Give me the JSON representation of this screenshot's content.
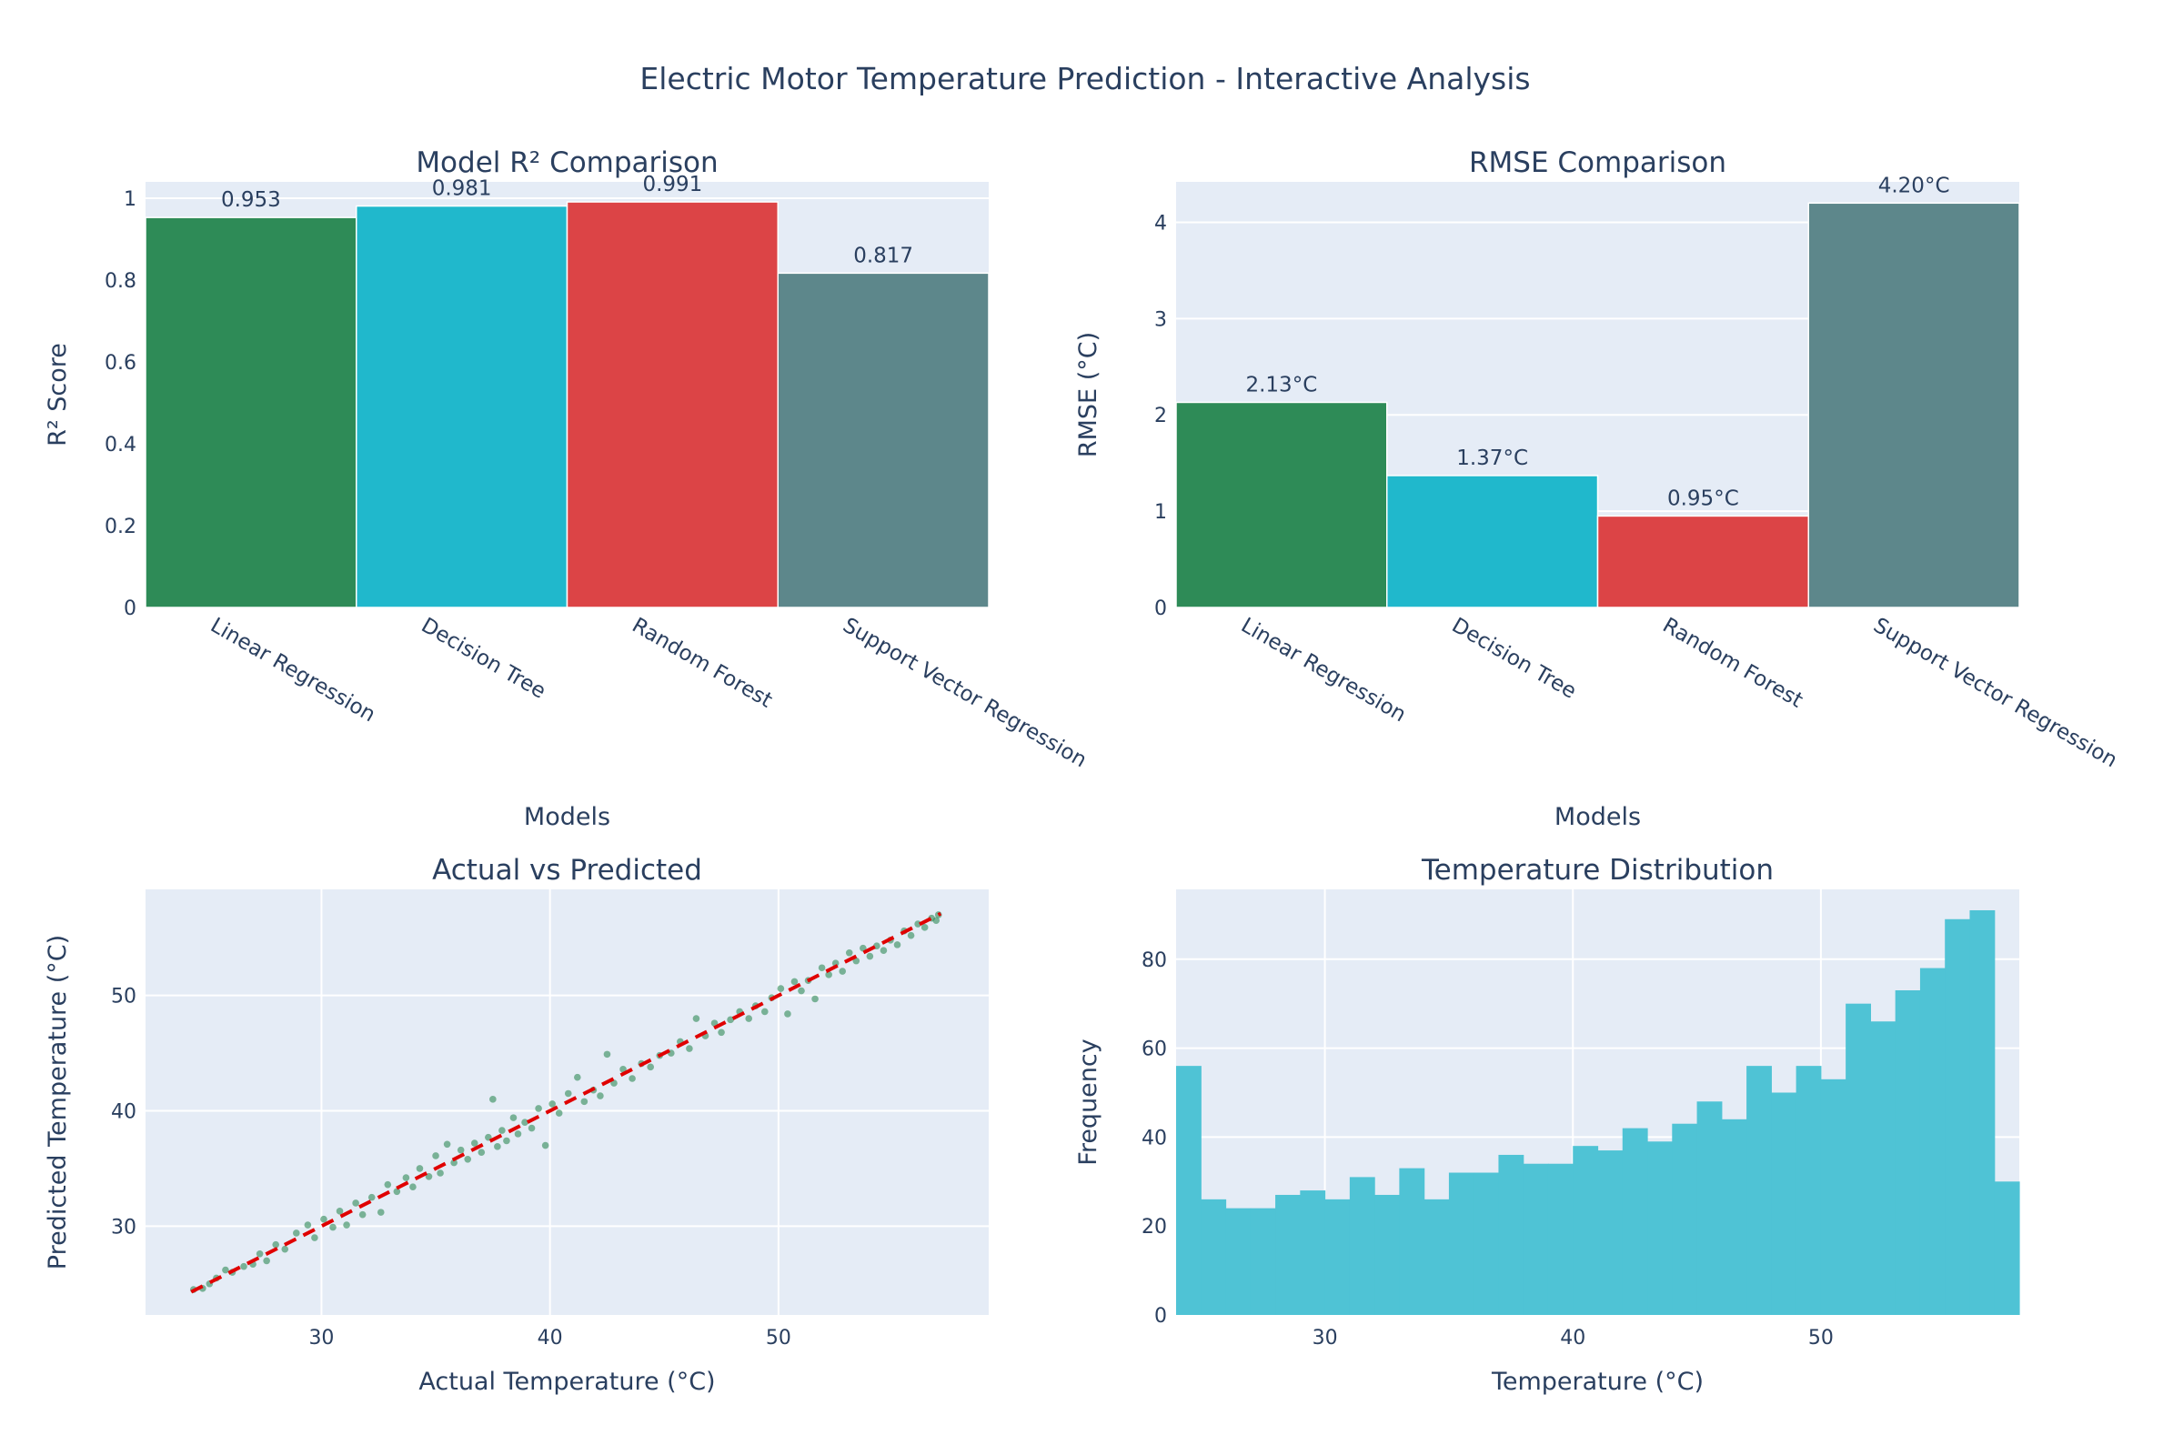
{
  "title": "Electric Motor Temperature Prediction - Interactive Analysis",
  "colors": {
    "plot_bg": "#e5ecf6",
    "grid": "#ffffff",
    "text": "#2a3f5f",
    "bar_colors": [
      "#2e8b57",
      "#20b8cc",
      "#dc4446",
      "#5d878b"
    ],
    "scatter": "#2e8b57",
    "ideal_line": "#e00000",
    "hist": "#4fc3d5"
  },
  "chart_data": [
    {
      "type": "bar",
      "title": "Model R² Comparison",
      "xlabel": "Models",
      "ylabel": "R² Score",
      "categories": [
        "Linear Regression",
        "Decision Tree",
        "Random Forest",
        "Support Vector Regression"
      ],
      "values": [
        0.953,
        0.981,
        0.991,
        0.817
      ],
      "data_labels": [
        "0.953",
        "0.981",
        "0.991",
        "0.817"
      ],
      "ylim": [
        0,
        1.04
      ],
      "yticks": [
        0,
        0.2,
        0.4,
        0.6,
        0.8,
        1
      ],
      "ytick_labels": [
        "0",
        "0.2",
        "0.4",
        "0.6",
        "0.8",
        "1"
      ],
      "grid": true
    },
    {
      "type": "bar",
      "title": "RMSE Comparison",
      "xlabel": "Models",
      "ylabel": "RMSE (°C)",
      "categories": [
        "Linear Regression",
        "Decision Tree",
        "Random Forest",
        "Support Vector Regression"
      ],
      "values": [
        2.13,
        1.37,
        0.95,
        4.2
      ],
      "data_labels": [
        "2.13°C",
        "1.37°C",
        "0.95°C",
        "4.20°C"
      ],
      "ylim": [
        0,
        4.42
      ],
      "yticks": [
        0,
        1,
        2,
        3,
        4
      ],
      "ytick_labels": [
        "0",
        "1",
        "2",
        "3",
        "4"
      ],
      "grid": true
    },
    {
      "type": "scatter",
      "title": "Actual vs Predicted",
      "xlabel": "Actual Temperature (°C)",
      "ylabel": "Predicted Temperature (°C)",
      "xlim": [
        22.3,
        59.2
      ],
      "ylim": [
        22.3,
        59.2
      ],
      "xticks": [
        30,
        40,
        50
      ],
      "xtick_labels": [
        "30",
        "40",
        "50"
      ],
      "yticks": [
        30,
        40,
        50
      ],
      "ytick_labels": [
        "30",
        "40",
        "50"
      ],
      "ideal_line": [
        [
          24.3,
          24.3
        ],
        [
          57.1,
          57.1
        ]
      ],
      "points": [
        [
          24.4,
          24.5
        ],
        [
          24.8,
          24.6
        ],
        [
          25.1,
          25.0
        ],
        [
          25.4,
          25.5
        ],
        [
          25.8,
          26.2
        ],
        [
          26.1,
          26.0
        ],
        [
          26.6,
          26.5
        ],
        [
          27.0,
          26.7
        ],
        [
          27.3,
          27.6
        ],
        [
          27.6,
          27.0
        ],
        [
          28.0,
          28.4
        ],
        [
          28.4,
          28.0
        ],
        [
          28.9,
          29.4
        ],
        [
          29.4,
          30.1
        ],
        [
          29.7,
          29.0
        ],
        [
          30.1,
          30.6
        ],
        [
          30.5,
          29.9
        ],
        [
          30.8,
          31.3
        ],
        [
          31.1,
          30.1
        ],
        [
          31.5,
          32.0
        ],
        [
          31.8,
          31.0
        ],
        [
          32.2,
          32.5
        ],
        [
          32.6,
          31.2
        ],
        [
          32.9,
          33.6
        ],
        [
          33.3,
          33.0
        ],
        [
          33.7,
          34.2
        ],
        [
          34.0,
          33.4
        ],
        [
          34.3,
          35.0
        ],
        [
          34.7,
          34.3
        ],
        [
          35.0,
          36.1
        ],
        [
          35.2,
          34.6
        ],
        [
          35.5,
          37.1
        ],
        [
          35.8,
          35.5
        ],
        [
          36.1,
          36.6
        ],
        [
          36.4,
          35.8
        ],
        [
          36.7,
          37.2
        ],
        [
          37.0,
          36.4
        ],
        [
          37.3,
          37.7
        ],
        [
          37.5,
          41.0
        ],
        [
          37.7,
          36.9
        ],
        [
          37.9,
          38.3
        ],
        [
          38.1,
          37.4
        ],
        [
          38.4,
          39.4
        ],
        [
          38.6,
          38.0
        ],
        [
          38.9,
          39.0
        ],
        [
          39.2,
          38.5
        ],
        [
          39.5,
          40.2
        ],
        [
          39.8,
          37.0
        ],
        [
          40.1,
          40.6
        ],
        [
          40.4,
          39.8
        ],
        [
          40.8,
          41.5
        ],
        [
          41.2,
          42.9
        ],
        [
          41.5,
          40.8
        ],
        [
          41.9,
          41.8
        ],
        [
          42.2,
          41.3
        ],
        [
          42.5,
          44.9
        ],
        [
          42.8,
          42.4
        ],
        [
          43.2,
          43.6
        ],
        [
          43.6,
          42.8
        ],
        [
          44.0,
          44.1
        ],
        [
          44.4,
          43.8
        ],
        [
          44.8,
          44.8
        ],
        [
          45.3,
          45.0
        ],
        [
          45.7,
          46.0
        ],
        [
          46.1,
          45.4
        ],
        [
          46.4,
          48.0
        ],
        [
          46.8,
          46.5
        ],
        [
          47.2,
          47.6
        ],
        [
          47.5,
          46.8
        ],
        [
          47.9,
          47.9
        ],
        [
          48.3,
          48.6
        ],
        [
          48.7,
          48.0
        ],
        [
          49.0,
          49.1
        ],
        [
          49.4,
          48.6
        ],
        [
          49.7,
          49.8
        ],
        [
          50.1,
          50.6
        ],
        [
          50.4,
          48.4
        ],
        [
          50.7,
          51.2
        ],
        [
          51.0,
          50.4
        ],
        [
          51.3,
          51.3
        ],
        [
          51.6,
          49.7
        ],
        [
          51.9,
          52.4
        ],
        [
          52.2,
          51.8
        ],
        [
          52.5,
          52.8
        ],
        [
          52.8,
          52.1
        ],
        [
          53.1,
          53.7
        ],
        [
          53.4,
          53.0
        ],
        [
          53.7,
          54.1
        ],
        [
          54.0,
          53.4
        ],
        [
          54.3,
          54.3
        ],
        [
          54.6,
          53.9
        ],
        [
          54.9,
          54.8
        ],
        [
          55.2,
          54.4
        ],
        [
          55.5,
          55.6
        ],
        [
          55.8,
          55.2
        ],
        [
          56.1,
          56.2
        ],
        [
          56.4,
          55.9
        ],
        [
          56.7,
          56.7
        ],
        [
          56.9,
          56.5
        ],
        [
          57.0,
          57.0
        ]
      ],
      "grid": true
    },
    {
      "type": "bar",
      "title": "Temperature Distribution",
      "xlabel": "Temperature (°C)",
      "ylabel": "Frequency",
      "bin_start": 24,
      "bin_width": 1,
      "counts": [
        56,
        26,
        24,
        24,
        27,
        28,
        26,
        31,
        27,
        33,
        26,
        32,
        32,
        36,
        34,
        34,
        38,
        37,
        42,
        39,
        43,
        48,
        44,
        56,
        50,
        56,
        53,
        70,
        66,
        73,
        78,
        89,
        91,
        30
      ],
      "xlim": [
        24,
        58
      ],
      "ylim": [
        0,
        95.7
      ],
      "xticks": [
        30,
        40,
        50
      ],
      "xtick_labels": [
        "30",
        "40",
        "50"
      ],
      "yticks": [
        0,
        20,
        40,
        60,
        80
      ],
      "ytick_labels": [
        "0",
        "20",
        "40",
        "60",
        "80"
      ],
      "grid": true
    }
  ]
}
